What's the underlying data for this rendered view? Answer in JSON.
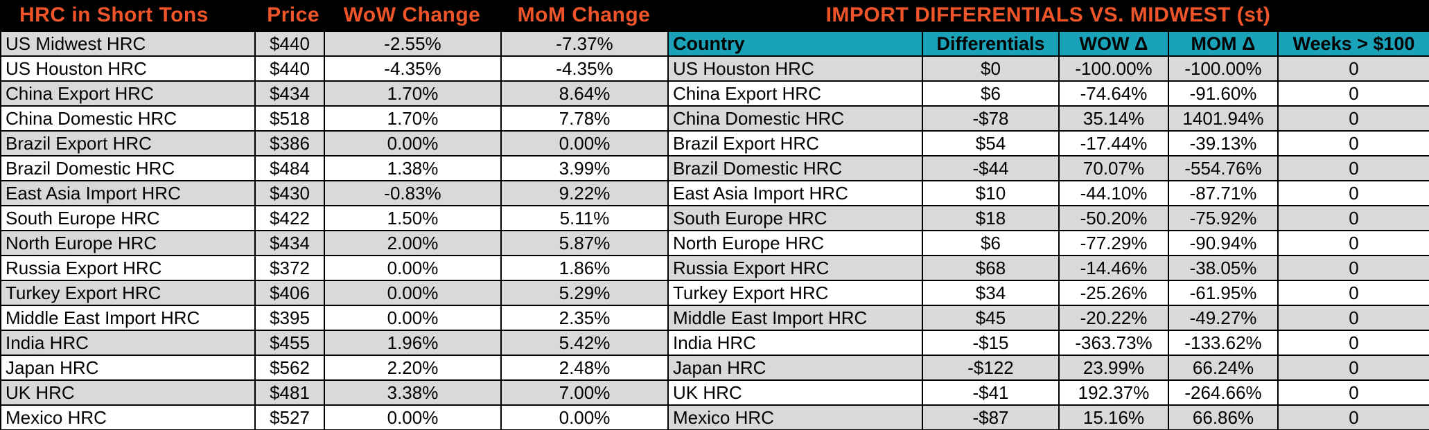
{
  "left": {
    "headers": [
      "HRC in Short Tons",
      "Price",
      "WoW Change",
      "MoM Change"
    ],
    "rows": [
      [
        "US Midwest HRC",
        "$440",
        "-2.55%",
        "-7.37%"
      ],
      [
        "US Houston HRC",
        "$440",
        "-4.35%",
        "-4.35%"
      ],
      [
        "China Export HRC",
        "$434",
        "1.70%",
        "8.64%"
      ],
      [
        "China Domestic HRC",
        "$518",
        "1.70%",
        "7.78%"
      ],
      [
        "Brazil Export HRC",
        "$386",
        "0.00%",
        "0.00%"
      ],
      [
        "Brazil Domestic HRC",
        "$484",
        "1.38%",
        "3.99%"
      ],
      [
        "East Asia Import HRC",
        "$430",
        "-0.83%",
        "9.22%"
      ],
      [
        "South Europe HRC",
        "$422",
        "1.50%",
        "5.11%"
      ],
      [
        "North Europe HRC",
        "$434",
        "2.00%",
        "5.87%"
      ],
      [
        "Russia Export HRC",
        "$372",
        "0.00%",
        "1.86%"
      ],
      [
        "Turkey Export HRC",
        "$406",
        "0.00%",
        "5.29%"
      ],
      [
        "Middle East Import HRC",
        "$395",
        "0.00%",
        "2.35%"
      ],
      [
        "India HRC",
        "$455",
        "1.96%",
        "5.42%"
      ],
      [
        "Japan HRC",
        "$562",
        "2.20%",
        "2.48%"
      ],
      [
        "UK HRC",
        "$481",
        "3.38%",
        "7.00%"
      ],
      [
        "Mexico HRC",
        "$527",
        "0.00%",
        "0.00%"
      ]
    ]
  },
  "right": {
    "title": "IMPORT DIFFERENTIALS VS. MIDWEST (st)",
    "headers": [
      "Country",
      "Differentials",
      "WOW Δ",
      "MOM Δ",
      "Weeks > $100"
    ],
    "rows": [
      [
        "US Houston HRC",
        "$0",
        "-100.00%",
        "-100.00%",
        "0"
      ],
      [
        "China Export HRC",
        "$6",
        "-74.64%",
        "-91.60%",
        "0"
      ],
      [
        "China Domestic HRC",
        "-$78",
        "35.14%",
        "1401.94%",
        "0"
      ],
      [
        "Brazil Export HRC",
        "$54",
        "-17.44%",
        "-39.13%",
        "0"
      ],
      [
        "Brazil Domestic HRC",
        "-$44",
        "70.07%",
        "-554.76%",
        "0"
      ],
      [
        "East Asia Import HRC",
        "$10",
        "-44.10%",
        "-87.71%",
        "0"
      ],
      [
        "South Europe HRC",
        "$18",
        "-50.20%",
        "-75.92%",
        "0"
      ],
      [
        "North Europe HRC",
        "$6",
        "-77.29%",
        "-90.94%",
        "0"
      ],
      [
        "Russia Export HRC",
        "$68",
        "-14.46%",
        "-38.05%",
        "0"
      ],
      [
        "Turkey Export HRC",
        "$34",
        "-25.26%",
        "-61.95%",
        "0"
      ],
      [
        "Middle East Import HRC",
        "$45",
        "-20.22%",
        "-49.27%",
        "0"
      ],
      [
        "India HRC",
        "-$15",
        "-363.73%",
        "-133.62%",
        "0"
      ],
      [
        "Japan HRC",
        "-$122",
        "23.99%",
        "66.24%",
        "0"
      ],
      [
        "UK HRC",
        "-$41",
        "192.37%",
        "-264.66%",
        "0"
      ],
      [
        "Mexico HRC",
        "-$87",
        "15.16%",
        "66.86%",
        "0"
      ]
    ]
  },
  "colors": {
    "title_orange": "#f0552a",
    "header_teal": "#1aa2b8",
    "row_gray": "#d9d9d9"
  }
}
